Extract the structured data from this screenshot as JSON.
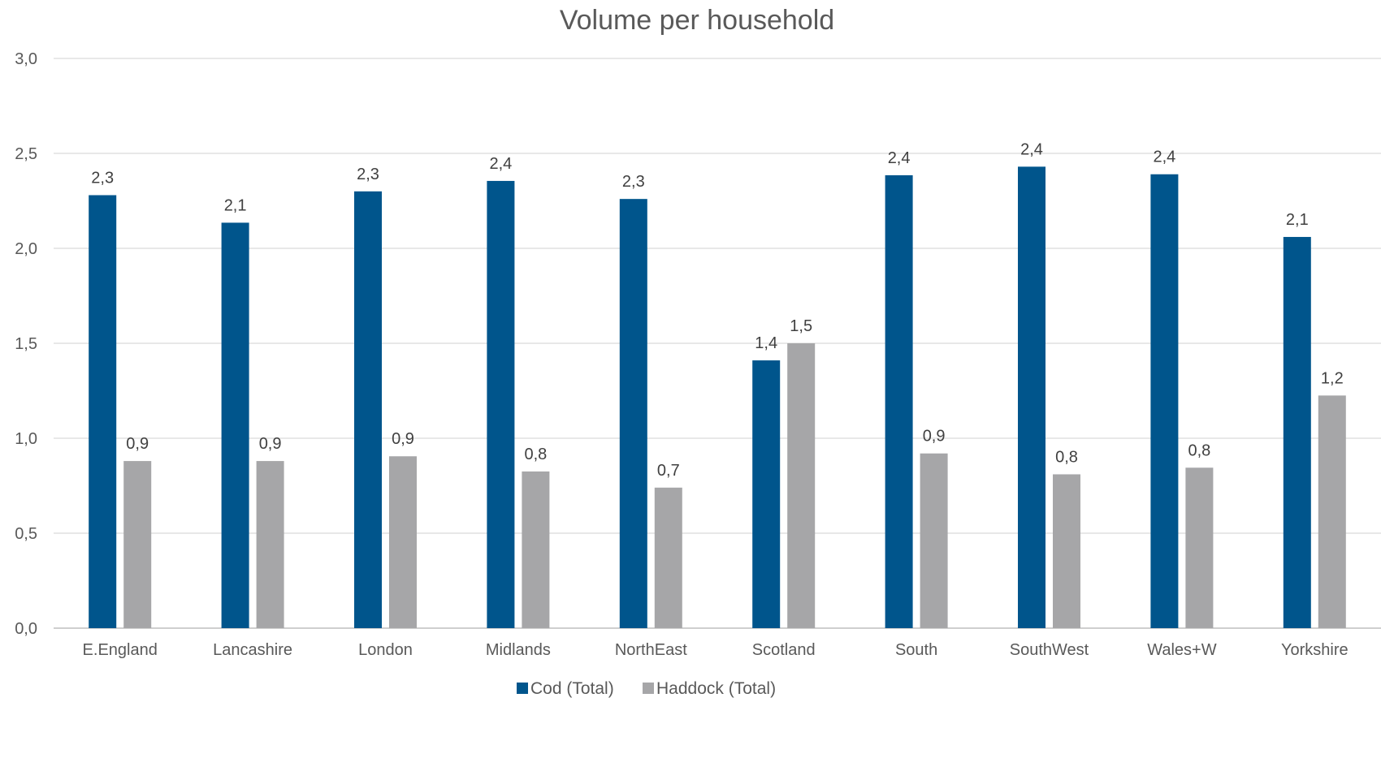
{
  "chart_data": {
    "type": "bar",
    "title": "Volume per household",
    "xlabel": "",
    "ylabel": "",
    "ylim": [
      0,
      3
    ],
    "yticks": [
      "0,0",
      "0,5",
      "1,0",
      "1,5",
      "2,0",
      "2,5",
      "3,0"
    ],
    "grid": true,
    "legend_position": "bottom",
    "categories": [
      "E.England",
      "Lancashire",
      "London",
      "Midlands",
      "NorthEast",
      "Scotland",
      "South",
      "SouthWest",
      "Wales+W",
      "Yorkshire"
    ],
    "series": [
      {
        "name": "Cod (Total)",
        "color": "#00558c",
        "values": [
          2.28,
          2.135,
          2.3,
          2.355,
          2.26,
          1.41,
          2.385,
          2.43,
          2.39,
          2.06
        ],
        "labels": [
          "2,3",
          "2,1",
          "2,3",
          "2,4",
          "2,3",
          "1,4",
          "2,4",
          "2,4",
          "2,4",
          "2,1"
        ]
      },
      {
        "name": "Haddock (Total)",
        "color": "#a6a6a8",
        "values": [
          0.88,
          0.88,
          0.905,
          0.825,
          0.74,
          1.5,
          0.92,
          0.81,
          0.845,
          1.225
        ],
        "labels": [
          "0,9",
          "0,9",
          "0,9",
          "0,8",
          "0,7",
          "1,5",
          "0,9",
          "0,8",
          "0,8",
          "1,2"
        ]
      }
    ]
  }
}
